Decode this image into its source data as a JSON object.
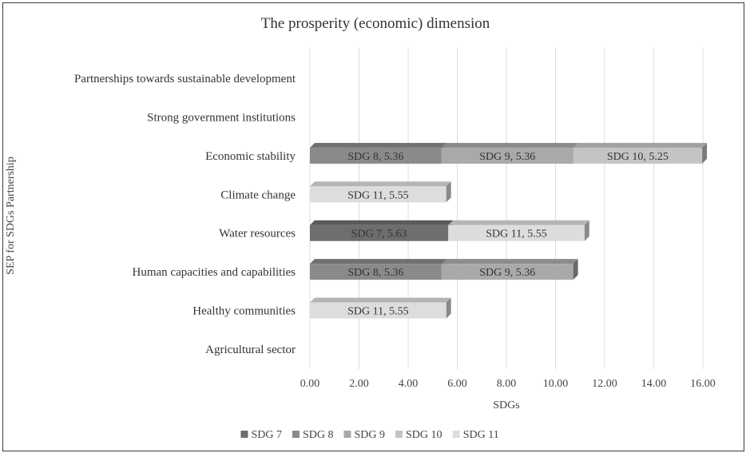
{
  "chart_data": {
    "type": "bar",
    "orientation": "horizontal",
    "stacked": true,
    "title": "The prosperity (economic) dimension",
    "xlabel": "SDGs",
    "ylabel": "SEP for SDGs Partnership",
    "xlim": [
      0,
      16
    ],
    "xticks": [
      "0.00",
      "2.00",
      "4.00",
      "6.00",
      "8.00",
      "10.00",
      "12.00",
      "14.00",
      "16.00"
    ],
    "grid": true,
    "legend_position": "bottom",
    "categories": [
      "Agricultural sector",
      "Healthy communities",
      "Human capacities and capabilities",
      "Water resources",
      "Climate change",
      "Economic stability",
      "Strong government institutions",
      "Partnerships towards sustainable development"
    ],
    "series": [
      {
        "name": "SDG 7",
        "color": "#6e6e6e",
        "values": [
          0,
          0,
          0,
          5.63,
          0,
          0,
          0,
          0
        ]
      },
      {
        "name": "SDG 8",
        "color": "#8a8a8a",
        "values": [
          0,
          0,
          5.36,
          0,
          0,
          5.36,
          0,
          0
        ]
      },
      {
        "name": "SDG 9",
        "color": "#a9a9a9",
        "values": [
          0,
          0,
          5.36,
          0,
          0,
          5.36,
          0,
          0
        ]
      },
      {
        "name": "SDG 10",
        "color": "#c4c4c4",
        "values": [
          0,
          0,
          0,
          0,
          0,
          5.25,
          0,
          0
        ]
      },
      {
        "name": "SDG 11",
        "color": "#dddddd",
        "values": [
          0,
          5.55,
          0,
          5.55,
          5.55,
          0,
          0,
          0
        ]
      }
    ],
    "data_labels": [
      {
        "category": "Healthy communities",
        "series": "SDG 11",
        "text": "SDG 11, 5.55"
      },
      {
        "category": "Human capacities and capabilities",
        "series": "SDG 8",
        "text": "SDG 8, 5.36"
      },
      {
        "category": "Human capacities and capabilities",
        "series": "SDG 9",
        "text": "SDG 9, 5.36"
      },
      {
        "category": "Water resources",
        "series": "SDG 7",
        "text": "SDG 7, 5.63"
      },
      {
        "category": "Water resources",
        "series": "SDG 11",
        "text": "SDG 11, 5.55"
      },
      {
        "category": "Climate change",
        "series": "SDG 11",
        "text": "SDG 11, 5.55"
      },
      {
        "category": "Economic stability",
        "series": "SDG 8",
        "text": "SDG 8, 5.36"
      },
      {
        "category": "Economic stability",
        "series": "SDG 9",
        "text": "SDG 9, 5.36"
      },
      {
        "category": "Economic stability",
        "series": "SDG 10",
        "text": "SDG 10, 5.25"
      }
    ]
  }
}
